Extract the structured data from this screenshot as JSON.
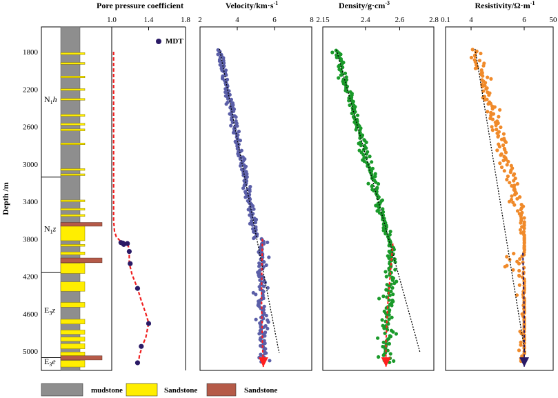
{
  "chart_data": {
    "type": "well-log",
    "y_axis": {
      "label": "Depth /m",
      "min": 1600,
      "max": 5200,
      "ticks": [
        1800,
        2200,
        2600,
        3000,
        3400,
        3800,
        4200,
        4600,
        5000
      ],
      "inverted": true
    },
    "formations": [
      {
        "name": "N",
        "sub": "1",
        "suffix": "h",
        "top": 1600,
        "bottom": 3140,
        "label_depth": 2340
      },
      {
        "name": "N",
        "sub": "1",
        "suffix": "z",
        "top": 3140,
        "bottom": 4160,
        "label_depth": 3720
      },
      {
        "name": "E",
        "sub": "3",
        "suffix": "z",
        "top": 4160,
        "bottom": 5070,
        "label_depth": 4590
      },
      {
        "name": "E",
        "sub": "3",
        "suffix": "e",
        "top": 5070,
        "bottom": 5200,
        "label_depth": 5140
      }
    ],
    "lithology": {
      "background": "mudstone",
      "sandstone_beds": [
        [
          1810,
          1830
        ],
        [
          1915,
          1935
        ],
        [
          2060,
          2075
        ],
        [
          2195,
          2210
        ],
        [
          2300,
          2315
        ],
        [
          2470,
          2490
        ],
        [
          2565,
          2585
        ],
        [
          2625,
          2645
        ],
        [
          2775,
          2790
        ],
        [
          3050,
          3065
        ],
        [
          3105,
          3120
        ],
        [
          3385,
          3400
        ],
        [
          3475,
          3490
        ],
        [
          3540,
          3560
        ],
        [
          3660,
          3820
        ],
        [
          3860,
          3880
        ],
        [
          3940,
          3970
        ],
        [
          4060,
          4170
        ],
        [
          4260,
          4360
        ],
        [
          4480,
          4530
        ],
        [
          4660,
          4710
        ],
        [
          4775,
          4820
        ],
        [
          4850,
          4895
        ],
        [
          4920,
          4975
        ],
        [
          5010,
          5050
        ],
        [
          5100,
          5170
        ]
      ],
      "red_beds": [
        [
          3625,
          3665
        ],
        [
          4005,
          4055
        ],
        [
          5050,
          5095
        ]
      ]
    },
    "legend": [
      {
        "label": "mudstone",
        "color": "#8e8e8e"
      },
      {
        "label": "Sandstone",
        "color": "#ffee00"
      },
      {
        "label": "Sandstone",
        "color": "#b55a48"
      }
    ],
    "tracks": [
      {
        "id": "pore",
        "title": "Pore pressure coefficient",
        "xlim": [
          1.0,
          1.8
        ],
        "xticks": [
          1.0,
          1.4,
          1.8
        ],
        "tick_labels": [
          "1.0",
          "1.4",
          "1.8"
        ],
        "legend_label": "MDT",
        "curve": [
          [
            1.02,
            1800
          ],
          [
            1.02,
            2800
          ],
          [
            1.02,
            3400
          ],
          [
            1.02,
            3600
          ],
          [
            1.03,
            3720
          ],
          [
            1.05,
            3780
          ],
          [
            1.09,
            3820
          ],
          [
            1.14,
            3840
          ],
          [
            1.18,
            3880
          ],
          [
            1.19,
            3950
          ],
          [
            1.19,
            4060
          ],
          [
            1.22,
            4180
          ],
          [
            1.28,
            4330
          ],
          [
            1.32,
            4460
          ],
          [
            1.37,
            4600
          ],
          [
            1.4,
            4700
          ],
          [
            1.37,
            4850
          ],
          [
            1.33,
            4950
          ],
          [
            1.3,
            5050
          ],
          [
            1.29,
            5130
          ]
        ],
        "mdt_points": [
          [
            1.1,
            3840
          ],
          [
            1.12,
            3845
          ],
          [
            1.13,
            3860
          ],
          [
            1.17,
            3850
          ],
          [
            1.19,
            3935
          ],
          [
            1.2,
            4065
          ],
          [
            1.28,
            4330
          ],
          [
            1.4,
            4705
          ],
          [
            1.32,
            4950
          ],
          [
            1.28,
            5125
          ]
        ],
        "colors": {
          "curve": "#f02020",
          "points": "#2a1a66"
        }
      },
      {
        "id": "velocity",
        "title": "Velocity/km·s",
        "title_sup": "-1",
        "xlim": [
          2,
          8
        ],
        "xticks": [
          2,
          4,
          6,
          8
        ],
        "tick_labels": [
          "2",
          "4",
          "6",
          "8"
        ],
        "trend": [
          [
            3.05,
            1770
          ],
          [
            6.25,
            5020
          ]
        ],
        "deviation": [
          [
            5.35,
            3800
          ],
          [
            5.3,
            4400
          ],
          [
            5.35,
            4900
          ],
          [
            5.4,
            5170
          ]
        ],
        "scatter_count": 300,
        "colors": {
          "points": "#5b5fa8",
          "arrow": "#ff2020"
        }
      },
      {
        "id": "density",
        "title": "Density/g·cm",
        "title_sup": "-3",
        "xlim": [
          2.15,
          2.8
        ],
        "xticks": [
          2.15,
          2.4,
          2.6,
          2.8
        ],
        "tick_labels": [
          "2.15",
          "2.4",
          "2.6",
          "2.8"
        ],
        "trend": [
          [
            2.23,
            1780
          ],
          [
            2.72,
            5020
          ]
        ],
        "deviation": [
          [
            2.56,
            3850
          ],
          [
            2.53,
            4500
          ],
          [
            2.52,
            4900
          ],
          [
            2.52,
            5170
          ]
        ],
        "scatter_count": 280,
        "colors": {
          "points": "#1a9a2a",
          "arrow": "#ff2020"
        }
      },
      {
        "id": "resistivity",
        "title": "Resistivity/Ω·m",
        "title_sup": "-1",
        "xlim": [
          0.1,
          50
        ],
        "xticks": [
          0.1,
          4,
          6,
          50
        ],
        "tick_labels": [
          "0.1",
          "4",
          "6",
          "50"
        ],
        "trend": [
          [
            4.15,
            1770
          ],
          [
            7.3,
            5020
          ]
        ],
        "deviation": [
          [
            5.95,
            3950
          ],
          [
            6.05,
            4600
          ],
          [
            6.05,
            5000
          ],
          [
            6.05,
            5170
          ]
        ],
        "scatter_count": 230,
        "colors": {
          "points": "#f08a2a",
          "arrow": "#2a1a66"
        }
      }
    ]
  }
}
